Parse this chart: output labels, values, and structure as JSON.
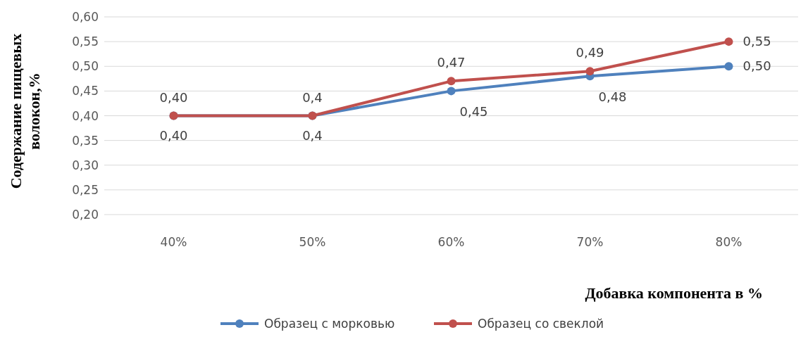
{
  "chart_data": {
    "type": "line",
    "xlabel": "Добавка компонента в %",
    "ylabel": "Содержание пищевых волокон,%",
    "categories": [
      "40%",
      "50%",
      "60%",
      "70%",
      "80%"
    ],
    "series": [
      {
        "name": "Образец с морковью",
        "color": "#4f81bd",
        "values": [
          0.4,
          0.4,
          0.45,
          0.48,
          0.5
        ],
        "value_labels": [
          "0,40",
          "0,4",
          "0,45",
          "0,48",
          "0,50"
        ]
      },
      {
        "name": "Образец со свеклой",
        "color": "#c0504d",
        "values": [
          0.4,
          0.4,
          0.47,
          0.49,
          0.55
        ],
        "value_labels": [
          "0,40",
          "0,4",
          "0,47",
          "0,49",
          "0,55"
        ]
      }
    ],
    "ylim": [
      0.2,
      0.6
    ],
    "yticks": [
      {
        "value": 0.2,
        "label": "0,20"
      },
      {
        "value": 0.25,
        "label": "0,25"
      },
      {
        "value": 0.3,
        "label": "0,30"
      },
      {
        "value": 0.35,
        "label": "0,35"
      },
      {
        "value": 0.4,
        "label": "0,40"
      },
      {
        "value": 0.45,
        "label": "0,45"
      },
      {
        "value": 0.5,
        "label": "0,50"
      },
      {
        "value": 0.55,
        "label": "0,55"
      },
      {
        "value": 0.6,
        "label": "0,60"
      }
    ],
    "grid": "y",
    "legend": "bottom",
    "marker": "circle",
    "line_style": "solid"
  }
}
